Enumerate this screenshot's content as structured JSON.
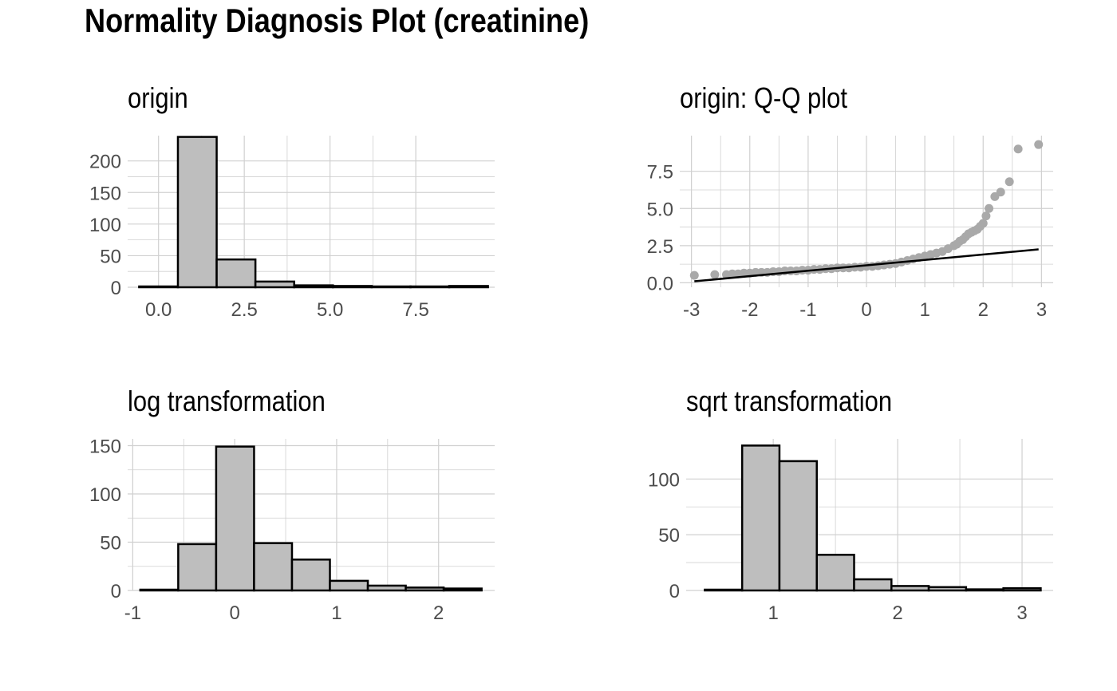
{
  "title": "Normality Diagnosis Plot (creatinine)",
  "colors": {
    "bar_fill": "#bebebe",
    "bar_stroke": "#000000",
    "grid": "#d0d0d0",
    "point": "#a9a9a9",
    "line": "#000000"
  },
  "chart_data": [
    {
      "type": "bar",
      "title": "origin",
      "xlabel": "",
      "ylabel": "",
      "xlim": [
        -0.9,
        9.8
      ],
      "ylim": [
        0,
        240
      ],
      "x_ticks": [
        0.0,
        2.5,
        5.0,
        7.5
      ],
      "x_tick_labels": [
        "0.0",
        "2.5",
        "5.0",
        "7.5"
      ],
      "y_ticks": [
        0,
        50,
        100,
        150,
        200
      ],
      "y_tick_labels": [
        "0",
        "50",
        "100",
        "150",
        "200"
      ],
      "bin_width": 1.13,
      "bin_centers": [
        0.0,
        1.13,
        2.26,
        3.39,
        4.52,
        5.65,
        6.78,
        7.91,
        9.04
      ],
      "values": [
        0,
        238,
        44,
        9,
        3,
        2,
        1,
        0,
        2
      ],
      "grid": true
    },
    {
      "type": "scatter",
      "title": "origin: Q-Q plot",
      "xlabel": "",
      "ylabel": "",
      "xlim": [
        -3.2,
        3.2
      ],
      "ylim": [
        -0.3,
        9.9
      ],
      "x_ticks": [
        -3,
        -2,
        -1,
        0,
        1,
        2,
        3
      ],
      "x_tick_labels": [
        "-3",
        "-2",
        "-1",
        "0",
        "1",
        "2",
        "3"
      ],
      "y_ticks": [
        0.0,
        2.5,
        5.0,
        7.5
      ],
      "y_tick_labels": [
        "0.0",
        "2.5",
        "5.0",
        "7.5"
      ],
      "reference_line": {
        "x": [
          -2.95,
          2.95
        ],
        "y": [
          0.1,
          2.25
        ]
      },
      "points_x": [
        -2.95,
        -2.6,
        -2.4,
        -2.3,
        -2.2,
        -2.1,
        -2.0,
        -1.9,
        -1.8,
        -1.7,
        -1.6,
        -1.5,
        -1.4,
        -1.3,
        -1.2,
        -1.1,
        -1.0,
        -0.9,
        -0.8,
        -0.7,
        -0.6,
        -0.5,
        -0.4,
        -0.3,
        -0.2,
        -0.1,
        0.0,
        0.1,
        0.2,
        0.3,
        0.4,
        0.5,
        0.6,
        0.7,
        0.8,
        0.9,
        1.0,
        1.1,
        1.2,
        1.3,
        1.4,
        1.5,
        1.55,
        1.6,
        1.65,
        1.7,
        1.75,
        1.8,
        1.85,
        1.9,
        1.95,
        2.0,
        2.05,
        2.1,
        2.2,
        2.3,
        2.45,
        2.6,
        2.95
      ],
      "points_y": [
        0.5,
        0.55,
        0.55,
        0.6,
        0.6,
        0.65,
        0.65,
        0.7,
        0.7,
        0.7,
        0.75,
        0.75,
        0.8,
        0.8,
        0.8,
        0.85,
        0.85,
        0.9,
        0.9,
        0.95,
        0.95,
        1.0,
        1.0,
        1.0,
        1.05,
        1.05,
        1.1,
        1.1,
        1.15,
        1.2,
        1.25,
        1.3,
        1.4,
        1.5,
        1.6,
        1.7,
        1.8,
        1.9,
        2.0,
        2.1,
        2.3,
        2.5,
        2.6,
        2.8,
        2.9,
        3.1,
        3.3,
        3.4,
        3.5,
        3.6,
        3.8,
        4.0,
        4.5,
        5.0,
        5.8,
        6.1,
        6.8,
        9.0,
        9.3
      ],
      "grid": true
    },
    {
      "type": "bar",
      "title": "log transformation",
      "xlabel": "",
      "ylabel": "",
      "xlim": [
        -1.05,
        2.55
      ],
      "ylim": [
        0,
        157
      ],
      "x_ticks": [
        -1,
        0,
        1,
        2
      ],
      "x_tick_labels": [
        "-1",
        "0",
        "1",
        "2"
      ],
      "y_ticks": [
        0,
        50,
        100,
        150
      ],
      "y_tick_labels": [
        "0",
        "50",
        "100",
        "150"
      ],
      "bin_width": 0.372,
      "bin_centers": [
        -0.74,
        -0.368,
        0.004,
        0.376,
        0.748,
        1.12,
        1.492,
        1.864,
        2.236
      ],
      "values": [
        0,
        48,
        149,
        49,
        32,
        10,
        5,
        3,
        2
      ],
      "grid": true
    },
    {
      "type": "bar",
      "title": "sqrt transformation",
      "xlabel": "",
      "ylabel": "",
      "xlim": [
        0.3,
        3.25
      ],
      "ylim": [
        0,
        136
      ],
      "x_ticks": [
        1,
        2,
        3
      ],
      "x_tick_labels": [
        "1",
        "2",
        "3"
      ],
      "y_ticks": [
        0,
        50,
        100
      ],
      "y_tick_labels": [
        "0",
        "50",
        "100"
      ],
      "bin_width": 0.3,
      "bin_centers": [
        0.6,
        0.9,
        1.2,
        1.5,
        1.8,
        2.1,
        2.4,
        2.7,
        3.0
      ],
      "values": [
        0,
        130,
        116,
        32,
        10,
        4,
        3,
        1,
        2
      ],
      "grid": true
    }
  ]
}
